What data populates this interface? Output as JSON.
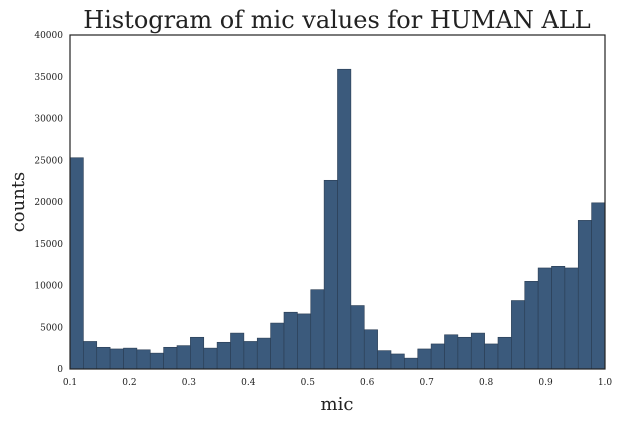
{
  "chart_data": {
    "type": "bar",
    "title": "Histogram of mic values for HUMAN  ALL",
    "xlabel": "mic",
    "ylabel": "counts",
    "xlim": [
      0.1,
      1.0
    ],
    "ylim": [
      0,
      40000
    ],
    "grid": false,
    "xticks": [
      "0.1",
      "0.2",
      "0.3",
      "0.4",
      "0.5",
      "0.6",
      "0.7",
      "0.8",
      "0.9",
      "1.0"
    ],
    "yticks": [
      "0",
      "5000",
      "10000",
      "15000",
      "20000",
      "25000",
      "30000",
      "35000",
      "40000"
    ],
    "bin_edges": [
      0.1,
      0.1225,
      0.145,
      0.1675,
      0.19,
      0.2125,
      0.235,
      0.2575,
      0.28,
      0.3025,
      0.325,
      0.3475,
      0.37,
      0.3925,
      0.415,
      0.4375,
      0.46,
      0.4825,
      0.505,
      0.5275,
      0.55,
      0.5725,
      0.595,
      0.6175,
      0.64,
      0.6625,
      0.685,
      0.7075,
      0.73,
      0.7525,
      0.775,
      0.7975,
      0.82,
      0.8425,
      0.865,
      0.8875,
      0.91,
      0.9325,
      0.955,
      0.9775,
      1.0
    ],
    "values": [
      25300,
      3300,
      2600,
      2400,
      2500,
      2300,
      1900,
      2600,
      2800,
      3800,
      2500,
      3200,
      4300,
      3300,
      3700,
      5500,
      6800,
      6600,
      9500,
      22600,
      35900,
      7600,
      4700,
      2200,
      1800,
      1300,
      2400,
      3000,
      4100,
      3800,
      4300,
      3000,
      3800,
      8200,
      10500,
      12100,
      12300,
      12100,
      17800,
      19900
    ]
  }
}
